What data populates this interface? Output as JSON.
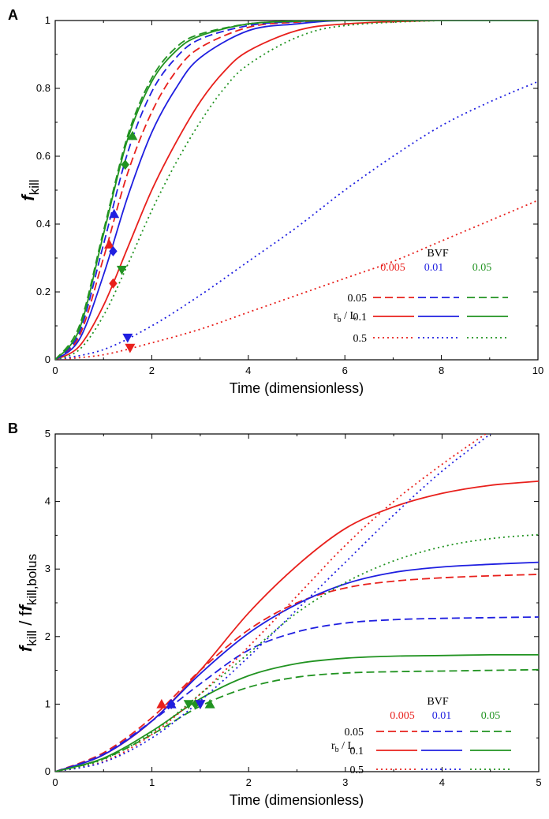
{
  "colors": {
    "red": "#e8201c",
    "blue": "#1f1fe0",
    "green": "#219321",
    "axis": "#000000"
  },
  "legend": {
    "title": "BVF",
    "bvf_values": [
      "0.005",
      "0.01",
      "0.05"
    ],
    "rb_values": [
      "0.05",
      "0.1",
      "0.5"
    ],
    "row_label_main": "r",
    "row_label_sub": "b",
    "row_label_tail": " / L",
    "linestyles": [
      "dashed",
      "solid",
      "dotted"
    ]
  },
  "chart_data": [
    {
      "panel": "A",
      "type": "line",
      "xlabel": "Time (dimensionless)",
      "ylabel_main": "f",
      "ylabel_sub": "kill",
      "xlim": [
        0,
        10
      ],
      "ylim": [
        0,
        1
      ],
      "xticks": [
        0,
        2,
        4,
        6,
        8,
        10
      ],
      "yticks": [
        0,
        0.2,
        0.4,
        0.6,
        0.8,
        1
      ],
      "yticklabels": [
        "0",
        "0.2",
        "0.4",
        "0.6",
        "0.8",
        "1"
      ],
      "series": [
        {
          "bvf": "0.005",
          "rb": "0.05",
          "color": "red",
          "style": "dashed",
          "x": [
            0,
            0.5,
            1,
            1.5,
            2,
            2.5,
            3,
            4,
            5,
            6,
            8,
            10
          ],
          "y": [
            0,
            0.07,
            0.3,
            0.55,
            0.73,
            0.85,
            0.92,
            0.98,
            0.995,
            1,
            1,
            1
          ]
        },
        {
          "bvf": "0.01",
          "rb": "0.05",
          "color": "blue",
          "style": "dashed",
          "x": [
            0,
            0.5,
            1,
            1.5,
            2,
            2.5,
            3,
            4,
            5,
            6,
            8,
            10
          ],
          "y": [
            0,
            0.08,
            0.34,
            0.61,
            0.79,
            0.89,
            0.945,
            0.985,
            0.997,
            1,
            1,
            1
          ]
        },
        {
          "bvf": "0.05",
          "rb": "0.05",
          "color": "green",
          "style": "dashed",
          "x": [
            0,
            0.5,
            1,
            1.5,
            2,
            2.5,
            3,
            4,
            5,
            6,
            8,
            10
          ],
          "y": [
            0,
            0.1,
            0.38,
            0.66,
            0.83,
            0.92,
            0.96,
            0.99,
            0.998,
            1,
            1,
            1
          ]
        },
        {
          "bvf": "0.005",
          "rb": "0.1",
          "color": "red",
          "style": "solid",
          "x": [
            0,
            0.5,
            1,
            1.5,
            2,
            2.5,
            3,
            3.5,
            4,
            5,
            6,
            8,
            10
          ],
          "y": [
            0,
            0.04,
            0.16,
            0.33,
            0.5,
            0.64,
            0.76,
            0.85,
            0.91,
            0.97,
            0.99,
            1,
            1
          ]
        },
        {
          "bvf": "0.01",
          "rb": "0.1",
          "color": "blue",
          "style": "solid",
          "x": [
            0,
            0.5,
            1,
            1.5,
            2,
            2.5,
            3,
            4,
            5,
            6,
            8,
            10
          ],
          "y": [
            0,
            0.06,
            0.25,
            0.48,
            0.67,
            0.8,
            0.89,
            0.97,
            0.99,
            1,
            1,
            1
          ]
        },
        {
          "bvf": "0.05",
          "rb": "0.1",
          "color": "green",
          "style": "solid",
          "x": [
            0,
            0.5,
            1,
            1.5,
            2,
            2.5,
            3,
            4,
            5,
            6,
            8,
            10
          ],
          "y": [
            0,
            0.09,
            0.37,
            0.65,
            0.82,
            0.91,
            0.955,
            0.99,
            0.998,
            1,
            1,
            1
          ]
        },
        {
          "bvf": "0.005",
          "rb": "0.5",
          "color": "red",
          "style": "dotted",
          "x": [
            0,
            1,
            2,
            3,
            4,
            5,
            6,
            7,
            8,
            9,
            10
          ],
          "y": [
            0,
            0.015,
            0.05,
            0.09,
            0.14,
            0.19,
            0.24,
            0.29,
            0.35,
            0.41,
            0.47
          ]
        },
        {
          "bvf": "0.01",
          "rb": "0.5",
          "color": "blue",
          "style": "dotted",
          "x": [
            0,
            1,
            2,
            3,
            4,
            5,
            6,
            7,
            8,
            9,
            10
          ],
          "y": [
            0,
            0.03,
            0.1,
            0.19,
            0.29,
            0.39,
            0.5,
            0.6,
            0.69,
            0.76,
            0.82
          ]
        },
        {
          "bvf": "0.05",
          "rb": "0.5",
          "color": "green",
          "style": "dotted",
          "x": [
            0,
            0.5,
            1,
            1.5,
            2,
            2.5,
            3,
            3.5,
            4,
            5,
            6,
            8,
            10
          ],
          "y": [
            0,
            0.03,
            0.13,
            0.28,
            0.44,
            0.58,
            0.7,
            0.8,
            0.87,
            0.95,
            0.985,
            1,
            1
          ]
        }
      ],
      "markers": [
        {
          "shape": "triangle-up",
          "color": "red",
          "x": 1.12,
          "y": 0.34
        },
        {
          "shape": "triangle-up",
          "color": "blue",
          "x": 1.22,
          "y": 0.43
        },
        {
          "shape": "triangle-up",
          "color": "green",
          "x": 1.6,
          "y": 0.66
        },
        {
          "shape": "diamond",
          "color": "red",
          "x": 1.2,
          "y": 0.225
        },
        {
          "shape": "diamond",
          "color": "blue",
          "x": 1.2,
          "y": 0.32
        },
        {
          "shape": "diamond",
          "color": "green",
          "x": 1.45,
          "y": 0.575
        },
        {
          "shape": "triangle-down",
          "color": "red",
          "x": 1.55,
          "y": 0.035
        },
        {
          "shape": "triangle-down",
          "color": "blue",
          "x": 1.5,
          "y": 0.065
        },
        {
          "shape": "triangle-down",
          "color": "green",
          "x": 1.38,
          "y": 0.265
        }
      ]
    },
    {
      "panel": "B",
      "type": "line",
      "xlabel": "Time (dimensionless)",
      "ylabel_main": "f",
      "ylabel_sub": "kill",
      "ylabel_mid": " / f",
      "ylabel_sub2": "kill,bolus",
      "xlim": [
        0,
        5
      ],
      "ylim": [
        0,
        5
      ],
      "xticks": [
        0,
        1,
        2,
        3,
        4,
        5
      ],
      "yticks": [
        0,
        1,
        2,
        3,
        4,
        5
      ],
      "yticklabels": [
        "0",
        "1",
        "2",
        "3",
        "4",
        "5"
      ],
      "series": [
        {
          "bvf": "0.005",
          "rb": "0.05",
          "color": "red",
          "style": "dashed",
          "x": [
            0,
            0.5,
            1,
            1.5,
            2,
            2.5,
            3,
            3.5,
            4,
            4.5,
            5
          ],
          "y": [
            0,
            0.28,
            0.8,
            1.5,
            2.1,
            2.5,
            2.72,
            2.82,
            2.87,
            2.9,
            2.92
          ]
        },
        {
          "bvf": "0.01",
          "rb": "0.05",
          "color": "blue",
          "style": "dashed",
          "x": [
            0,
            0.5,
            1,
            1.5,
            2,
            2.5,
            3,
            3.5,
            4,
            4.5,
            5
          ],
          "y": [
            0,
            0.26,
            0.75,
            1.3,
            1.8,
            2.07,
            2.2,
            2.25,
            2.27,
            2.28,
            2.29
          ]
        },
        {
          "bvf": "0.05",
          "rb": "0.05",
          "color": "green",
          "style": "dashed",
          "x": [
            0,
            0.5,
            1,
            1.5,
            2,
            2.5,
            3,
            3.5,
            4,
            4.5,
            5
          ],
          "y": [
            0,
            0.19,
            0.55,
            0.97,
            1.25,
            1.4,
            1.46,
            1.48,
            1.49,
            1.5,
            1.51
          ]
        },
        {
          "bvf": "0.005",
          "rb": "0.1",
          "color": "red",
          "style": "solid",
          "x": [
            0,
            0.5,
            1,
            1.5,
            2,
            2.5,
            3,
            3.5,
            4,
            4.5,
            5
          ],
          "y": [
            0,
            0.25,
            0.75,
            1.5,
            2.35,
            3.05,
            3.6,
            3.92,
            4.12,
            4.24,
            4.3
          ]
        },
        {
          "bvf": "0.01",
          "rb": "0.1",
          "color": "blue",
          "style": "solid",
          "x": [
            0,
            0.5,
            1,
            1.5,
            2,
            2.5,
            3,
            3.5,
            4,
            4.5,
            5
          ],
          "y": [
            0,
            0.25,
            0.75,
            1.45,
            2.05,
            2.48,
            2.78,
            2.95,
            3.03,
            3.07,
            3.1
          ]
        },
        {
          "bvf": "0.05",
          "rb": "0.1",
          "color": "green",
          "style": "solid",
          "x": [
            0,
            0.5,
            1,
            1.5,
            2,
            2.5,
            3,
            3.5,
            4,
            4.5,
            5
          ],
          "y": [
            0,
            0.2,
            0.6,
            1.08,
            1.42,
            1.6,
            1.68,
            1.71,
            1.72,
            1.73,
            1.73
          ]
        },
        {
          "bvf": "0.005",
          "rb": "0.5",
          "color": "red",
          "style": "dotted",
          "x": [
            0,
            0.5,
            1,
            1.5,
            2,
            2.5,
            3,
            3.5,
            4,
            4.45
          ],
          "y": [
            0,
            0.15,
            0.55,
            1.15,
            1.85,
            2.6,
            3.35,
            4.0,
            4.55,
            5.0
          ]
        },
        {
          "bvf": "0.01",
          "rb": "0.5",
          "color": "blue",
          "style": "dotted",
          "x": [
            0,
            0.5,
            1,
            1.5,
            2,
            2.5,
            3,
            3.5,
            4,
            4.5
          ],
          "y": [
            0,
            0.14,
            0.5,
            1.05,
            1.7,
            2.4,
            3.1,
            3.8,
            4.45,
            5.0
          ]
        },
        {
          "bvf": "0.05",
          "rb": "0.5",
          "color": "green",
          "style": "dotted",
          "x": [
            0,
            0.5,
            1,
            1.5,
            2,
            2.5,
            3,
            3.5,
            4,
            4.5,
            5
          ],
          "y": [
            0,
            0.18,
            0.58,
            1.15,
            1.75,
            2.35,
            2.8,
            3.12,
            3.33,
            3.45,
            3.51
          ]
        }
      ],
      "markers": [
        {
          "shape": "triangle-up",
          "color": "red",
          "x": 1.1,
          "y": 1.0
        },
        {
          "shape": "triangle-up",
          "color": "blue",
          "x": 1.2,
          "y": 1.0
        },
        {
          "shape": "triangle-up",
          "color": "green",
          "x": 1.6,
          "y": 1.0
        },
        {
          "shape": "diamond",
          "color": "red",
          "x": 1.2,
          "y": 1.0
        },
        {
          "shape": "diamond",
          "color": "blue",
          "x": 1.2,
          "y": 1.0
        },
        {
          "shape": "diamond",
          "color": "green",
          "x": 1.45,
          "y": 1.0
        },
        {
          "shape": "triangle-down",
          "color": "red",
          "x": 1.5,
          "y": 1.0
        },
        {
          "shape": "triangle-down",
          "color": "blue",
          "x": 1.5,
          "y": 1.0
        },
        {
          "shape": "triangle-down",
          "color": "green",
          "x": 1.38,
          "y": 1.0
        }
      ]
    }
  ]
}
